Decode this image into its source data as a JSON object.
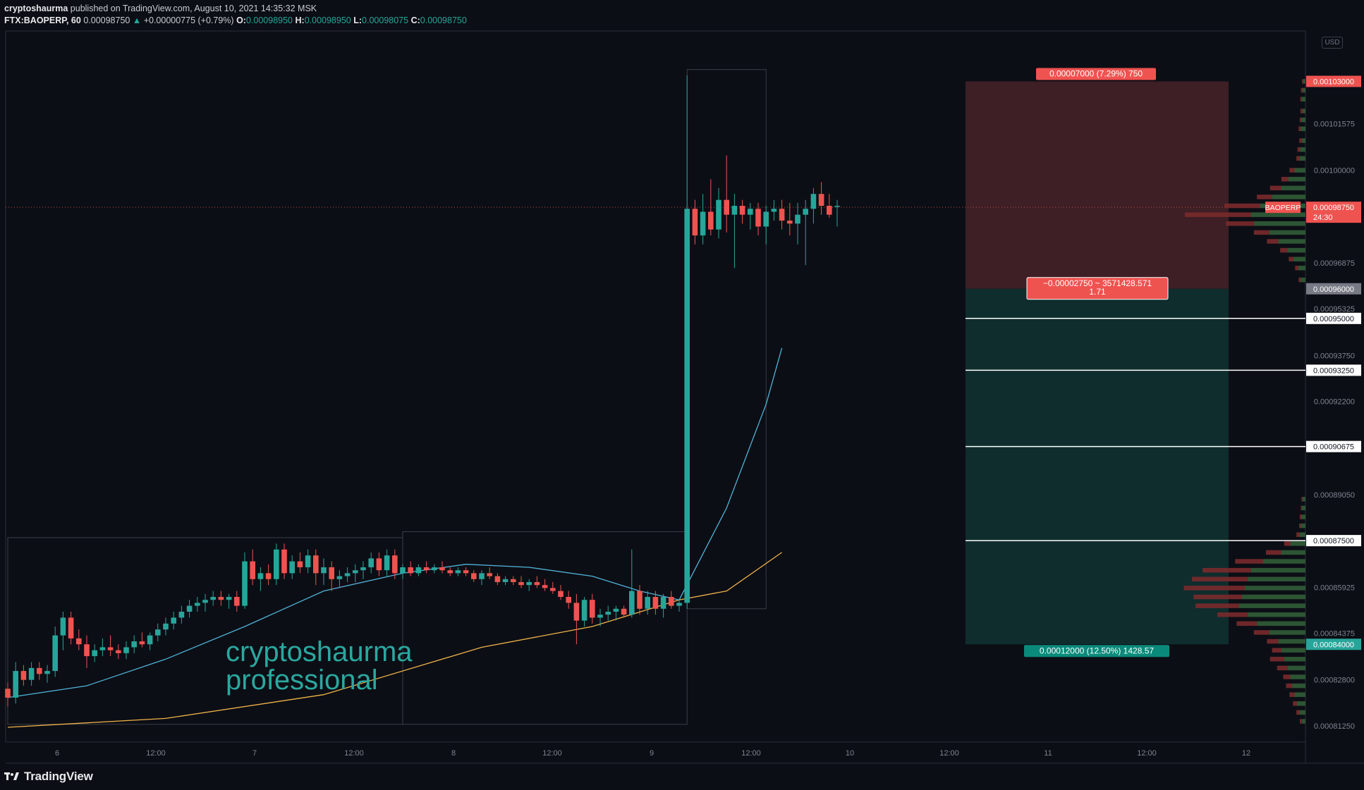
{
  "header": {
    "author": "cryptoshaurma",
    "published_text": "published on TradingView.com, August 10, 2021 14:35:32 MSK",
    "symbol": "FTX:BAOPERP, 60",
    "last": "0.00098750",
    "change_arrow": "▲",
    "change": "+0.00000775 (+0.79%)",
    "o_label": "O:",
    "o": "0.00098950",
    "h_label": "H:",
    "h": "0.00098950",
    "l_label": "L:",
    "l": "0.00098075",
    "c_label": "C:",
    "c": "0.00098750"
  },
  "currency_badge": "USD",
  "watermark": {
    "line1": "cryptoshaurma",
    "line2": "professional"
  },
  "footer": {
    "brand": "TradingView",
    "icon": "tradingview-logo-icon"
  },
  "colors": {
    "up": "#26a69a",
    "down": "#ef5350",
    "ma_fast": "#4fb3d9",
    "ma_slow": "#f0b44a",
    "stop_zone": "#3d1f25",
    "target_zone": "#0f2d2d",
    "background": "#0c0e15"
  },
  "chart_data": {
    "type": "candlestick",
    "symbol": "FTX:BAOPERP",
    "interval": "60",
    "x_ticks": [
      "6",
      "12:00",
      "7",
      "12:00",
      "8",
      "12:00",
      "9",
      "12:00",
      "10",
      "12:00",
      "11",
      "12:00",
      "12"
    ],
    "y_ticks": [
      "0.00101575",
      "0.00100000",
      "0.00096875",
      "0.00095325",
      "0.00093750",
      "0.00092200",
      "0.00089050",
      "0.00085925",
      "0.00084375",
      "0.00082800",
      "0.00081250"
    ],
    "ylim": [
      0.000807,
      0.001047
    ],
    "candles": [
      [
        0.000825,
        0.000827,
        0.000819,
        0.000822
      ],
      [
        0.000822,
        0.000834,
        0.00082,
        0.000831
      ],
      [
        0.000831,
        0.000833,
        0.000826,
        0.000828
      ],
      [
        0.000828,
        0.000834,
        0.000826,
        0.000832
      ],
      [
        0.000832,
        0.000834,
        0.000828,
        0.00083
      ],
      [
        0.00083,
        0.000833,
        0.000827,
        0.000831
      ],
      [
        0.000831,
        0.000846,
        0.000829,
        0.000843
      ],
      [
        0.000843,
        0.000851,
        0.000838,
        0.000849
      ],
      [
        0.000849,
        0.000851,
        0.00084,
        0.000842
      ],
      [
        0.000842,
        0.000845,
        0.000838,
        0.00084
      ],
      [
        0.00084,
        0.000843,
        0.000832,
        0.000836
      ],
      [
        0.000836,
        0.00084,
        0.000834,
        0.000838
      ],
      [
        0.000838,
        0.000842,
        0.000836,
        0.000839
      ],
      [
        0.000839,
        0.000843,
        0.000836,
        0.000838
      ],
      [
        0.000838,
        0.00084,
        0.000835,
        0.000837
      ],
      [
        0.000837,
        0.000841,
        0.000835,
        0.000839
      ],
      [
        0.000839,
        0.000843,
        0.000837,
        0.000841
      ],
      [
        0.000841,
        0.000844,
        0.000839,
        0.00084
      ],
      [
        0.00084,
        0.000844,
        0.000838,
        0.000843
      ],
      [
        0.000843,
        0.000847,
        0.000841,
        0.000845
      ],
      [
        0.000845,
        0.000849,
        0.000843,
        0.000847
      ],
      [
        0.000847,
        0.000851,
        0.000845,
        0.000849
      ],
      [
        0.000849,
        0.000853,
        0.000847,
        0.000851
      ],
      [
        0.000851,
        0.000855,
        0.000849,
        0.000853
      ],
      [
        0.000853,
        0.000856,
        0.000851,
        0.000854
      ],
      [
        0.000854,
        0.000857,
        0.000851,
        0.000855
      ],
      [
        0.000855,
        0.000858,
        0.000853,
        0.000856
      ],
      [
        0.000856,
        0.000858,
        0.000853,
        0.000855
      ],
      [
        0.000855,
        0.000857,
        0.000852,
        0.000856
      ],
      [
        0.000856,
        0.000858,
        0.000851,
        0.000853
      ],
      [
        0.000853,
        0.000871,
        0.000852,
        0.000868
      ],
      [
        0.000868,
        0.000872,
        0.00086,
        0.000862
      ],
      [
        0.000862,
        0.000866,
        0.000858,
        0.000864
      ],
      [
        0.000864,
        0.000867,
        0.00086,
        0.000862
      ],
      [
        0.000862,
        0.000874,
        0.00086,
        0.000872
      ],
      [
        0.000872,
        0.000874,
        0.000862,
        0.000864
      ],
      [
        0.000864,
        0.00087,
        0.000862,
        0.000868
      ],
      [
        0.000868,
        0.000871,
        0.000864,
        0.000866
      ],
      [
        0.000866,
        0.000872,
        0.000864,
        0.00087
      ],
      [
        0.00087,
        0.000872,
        0.00086,
        0.000864
      ],
      [
        0.000864,
        0.000869,
        0.00086,
        0.000866
      ],
      [
        0.000866,
        0.000868,
        0.000858,
        0.000862
      ],
      [
        0.000862,
        0.000865,
        0.000859,
        0.000863
      ],
      [
        0.000863,
        0.000866,
        0.000861,
        0.000864
      ],
      [
        0.000864,
        0.000867,
        0.000861,
        0.000865
      ],
      [
        0.000865,
        0.000868,
        0.000862,
        0.000866
      ],
      [
        0.000866,
        0.000871,
        0.000864,
        0.000869
      ],
      [
        0.000869,
        0.000871,
        0.000863,
        0.000865
      ],
      [
        0.000865,
        0.000872,
        0.000863,
        0.00087
      ],
      [
        0.00087,
        0.000872,
        0.000862,
        0.000864
      ],
      [
        0.000864,
        0.000867,
        0.000862,
        0.000866
      ],
      [
        0.000866,
        0.000868,
        0.000863,
        0.000864
      ],
      [
        0.000864,
        0.000867,
        0.000863,
        0.000866
      ],
      [
        0.000866,
        0.000868,
        0.000864,
        0.000865
      ],
      [
        0.000865,
        0.000867,
        0.000864,
        0.000866
      ],
      [
        0.000866,
        0.000868,
        0.000864,
        0.000865
      ],
      [
        0.000865,
        0.000866,
        0.000863,
        0.000864
      ],
      [
        0.000864,
        0.000866,
        0.000863,
        0.000865
      ],
      [
        0.000865,
        0.000866,
        0.000863,
        0.000864
      ],
      [
        0.000864,
        0.000865,
        0.000861,
        0.000862
      ],
      [
        0.000862,
        0.000865,
        0.00086,
        0.000864
      ],
      [
        0.000864,
        0.000866,
        0.000862,
        0.000863
      ],
      [
        0.000863,
        0.000864,
        0.00086,
        0.000861
      ],
      [
        0.000861,
        0.000863,
        0.00086,
        0.000862
      ],
      [
        0.000862,
        0.000863,
        0.00086,
        0.000861
      ],
      [
        0.000861,
        0.000863,
        0.000859,
        0.00086
      ],
      [
        0.00086,
        0.000862,
        0.000858,
        0.000861
      ],
      [
        0.000861,
        0.000863,
        0.000859,
        0.00086
      ],
      [
        0.00086,
        0.000862,
        0.000858,
        0.000859
      ],
      [
        0.000859,
        0.000861,
        0.000857,
        0.000858
      ],
      [
        0.000858,
        0.00086,
        0.000855,
        0.000856
      ],
      [
        0.000856,
        0.000858,
        0.000852,
        0.000854
      ],
      [
        0.000854,
        0.000857,
        0.00084,
        0.000848
      ],
      [
        0.000848,
        0.000856,
        0.000846,
        0.000855
      ],
      [
        0.000855,
        0.000857,
        0.000847,
        0.000849
      ],
      [
        0.000849,
        0.000852,
        0.000846,
        0.00085
      ],
      [
        0.00085,
        0.000853,
        0.000848,
        0.000851
      ],
      [
        0.000851,
        0.000853,
        0.000848,
        0.000852
      ],
      [
        0.000852,
        0.000853,
        0.000849,
        0.00085
      ],
      [
        0.00085,
        0.000872,
        0.000849,
        0.000858
      ],
      [
        0.000858,
        0.00086,
        0.00085,
        0.000852
      ],
      [
        0.000852,
        0.000858,
        0.00085,
        0.000856
      ],
      [
        0.000856,
        0.000858,
        0.00085,
        0.000852
      ],
      [
        0.000852,
        0.000857,
        0.000849,
        0.000856
      ],
      [
        0.000856,
        0.000858,
        0.000852,
        0.000853
      ],
      [
        0.000853,
        0.000855,
        0.000851,
        0.000854
      ],
      [
        0.000854,
        0.001032,
        0.000852,
        0.000987
      ],
      [
        0.000987,
        0.00099,
        0.000975,
        0.000978
      ],
      [
        0.000978,
        0.000992,
        0.000975,
        0.000986
      ],
      [
        0.000986,
        0.000997,
        0.000978,
        0.00098
      ],
      [
        0.00098,
        0.000994,
        0.000977,
        0.00099
      ],
      [
        0.00099,
        0.001005,
        0.000979,
        0.000985
      ],
      [
        0.000985,
        0.000992,
        0.000967,
        0.000988
      ],
      [
        0.000988,
        0.00099,
        0.000982,
        0.000985
      ],
      [
        0.000985,
        0.000989,
        0.00098,
        0.000987
      ],
      [
        0.000987,
        0.000989,
        0.000978,
        0.000981
      ],
      [
        0.000981,
        0.000988,
        0.000975,
        0.000986
      ],
      [
        0.000986,
        0.00099,
        0.000983,
        0.000987
      ],
      [
        0.000987,
        0.00099,
        0.00098,
        0.000983
      ],
      [
        0.000983,
        0.000989,
        0.000978,
        0.000982
      ],
      [
        0.000982,
        0.000989,
        0.000975,
        0.000985
      ],
      [
        0.000985,
        0.00099,
        0.000968,
        0.000987
      ],
      [
        0.000987,
        0.000994,
        0.000982,
        0.000992
      ],
      [
        0.000992,
        0.000996,
        0.000985,
        0.000988
      ],
      [
        0.000988,
        0.000992,
        0.000984,
        0.000985
      ],
      [
        0.000988,
        0.00099,
        0.000981,
        0.000988
      ]
    ],
    "ma_fast": [
      [
        0,
        0.000822
      ],
      [
        10,
        0.000826
      ],
      [
        20,
        0.000835
      ],
      [
        30,
        0.000846
      ],
      [
        40,
        0.000858
      ],
      [
        50,
        0.000864
      ],
      [
        58,
        0.000867
      ],
      [
        66,
        0.000866
      ],
      [
        74,
        0.000863
      ],
      [
        80,
        0.000858
      ],
      [
        85,
        0.000855
      ],
      [
        91,
        0.000886
      ],
      [
        96,
        0.000921
      ],
      [
        98,
        0.00094
      ]
    ],
    "ma_slow": [
      [
        0,
        0.000812
      ],
      [
        20,
        0.000815
      ],
      [
        40,
        0.000823
      ],
      [
        60,
        0.000839
      ],
      [
        74,
        0.000846
      ],
      [
        85,
        0.000855
      ],
      [
        91,
        0.000858
      ],
      [
        98,
        0.000871
      ]
    ],
    "position": {
      "entry": 0.00096,
      "stop": 0.00103,
      "target": 0.00084,
      "stop_label": "0.00007000 (7.29%) 750",
      "center_label_line1": "−0.00002750 ~ 3571428.571",
      "center_label_line2": "1.71",
      "target_label": "0.00012000 (12.50%) 1428.57"
    },
    "horizontal_levels": [
      0.00095,
      0.0009325,
      0.00090675,
      0.000875
    ],
    "price_badges": [
      {
        "price": 0.00103,
        "text": "0.00103000",
        "color": "#ef5350"
      },
      {
        "price": 0.0009875,
        "text": "BAOPERP",
        "value_text": "0.00098750",
        "countdown": "24:30",
        "color": "#ef5350"
      },
      {
        "price": 0.00096,
        "text": "0.00096000",
        "color": "#787b86"
      },
      {
        "price": 0.00095,
        "text": "0.00095000",
        "color": "#ffffff"
      },
      {
        "price": 0.0009325,
        "text": "0.00093250",
        "color": "#ffffff"
      },
      {
        "price": 0.00090675,
        "text": "0.00090675",
        "color": "#ffffff"
      },
      {
        "price": 0.000875,
        "text": "0.00087500",
        "color": "#ffffff"
      },
      {
        "price": 0.00084,
        "text": "0.00084000",
        "color": "#26a69a"
      }
    ],
    "volume_profile_upper": [
      [
        0.00103,
        4,
        2
      ],
      [
        0.001027,
        5,
        3
      ],
      [
        0.001024,
        6,
        3
      ],
      [
        0.00102,
        5,
        4
      ],
      [
        0.001017,
        7,
        3
      ],
      [
        0.001014,
        8,
        4
      ],
      [
        0.00101,
        6,
        5
      ],
      [
        0.001007,
        9,
        5
      ],
      [
        0.001004,
        10,
        6
      ],
      [
        0.001,
        18,
        10
      ],
      [
        0.000997,
        28,
        14
      ],
      [
        0.000994,
        40,
        22
      ],
      [
        0.000991,
        55,
        30
      ],
      [
        0.000988,
        75,
        70
      ],
      [
        0.000985,
        90,
        130
      ],
      [
        0.000982,
        85,
        55
      ],
      [
        0.000979,
        60,
        30
      ],
      [
        0.000976,
        45,
        22
      ],
      [
        0.000973,
        30,
        14
      ],
      [
        0.00097,
        20,
        9
      ],
      [
        0.000967,
        12,
        6
      ],
      [
        0.000963,
        8,
        4
      ]
    ],
    "volume_profile_lower": [
      [
        0.000889,
        5,
        2
      ],
      [
        0.000886,
        6,
        2
      ],
      [
        0.000883,
        7,
        3
      ],
      [
        0.00088,
        8,
        3
      ],
      [
        0.000877,
        10,
        6
      ],
      [
        0.000874,
        25,
        12
      ],
      [
        0.000871,
        40,
        30
      ],
      [
        0.000868,
        70,
        55
      ],
      [
        0.000865,
        90,
        95
      ],
      [
        0.000862,
        95,
        110
      ],
      [
        0.000859,
        100,
        120
      ],
      [
        0.000856,
        105,
        95
      ],
      [
        0.000853,
        110,
        85
      ],
      [
        0.00085,
        95,
        60
      ],
      [
        0.000847,
        80,
        40
      ],
      [
        0.000844,
        60,
        30
      ],
      [
        0.000841,
        45,
        22
      ],
      [
        0.000838,
        40,
        18
      ],
      [
        0.000835,
        35,
        28
      ],
      [
        0.000832,
        30,
        20
      ],
      [
        0.000829,
        25,
        14
      ],
      [
        0.000826,
        22,
        12
      ],
      [
        0.000823,
        18,
        10
      ],
      [
        0.00082,
        14,
        8
      ],
      [
        0.000817,
        10,
        6
      ],
      [
        0.000814,
        6,
        4
      ]
    ],
    "range_boxes": [
      {
        "x0": 0,
        "x1": 50,
        "y0": 0.000813,
        "y1": 0.000876
      },
      {
        "x0": 50,
        "x1": 86,
        "y0": 0.000813,
        "y1": 0.000878
      },
      {
        "x0": 86,
        "x1": 96,
        "y0": 0.000852,
        "y1": 0.001034
      }
    ]
  }
}
